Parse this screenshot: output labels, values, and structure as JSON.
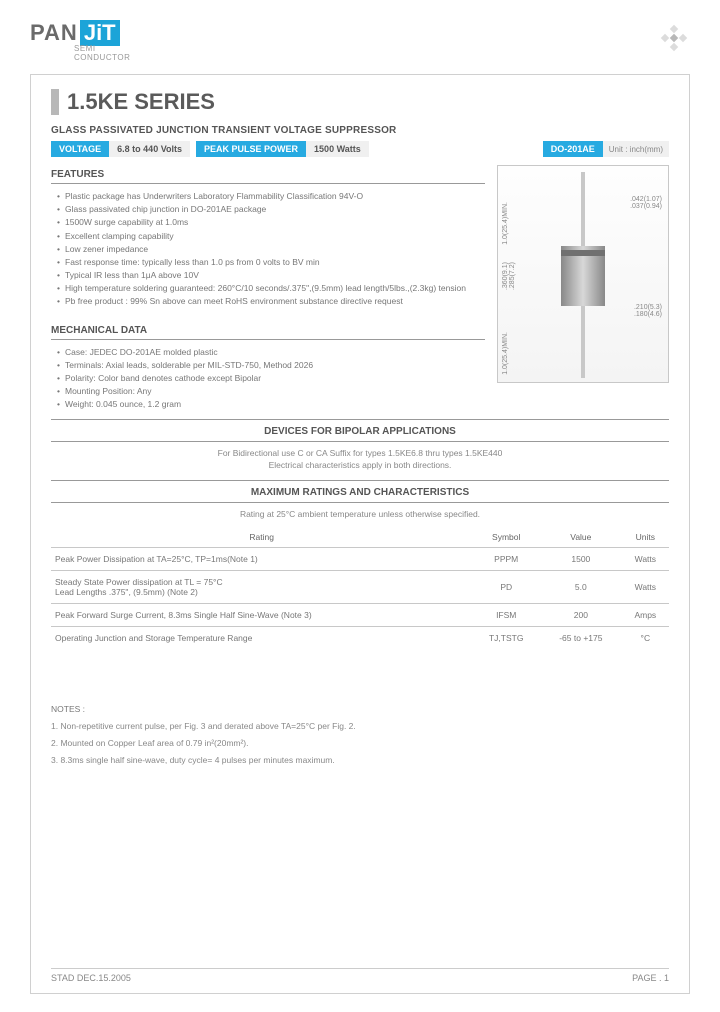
{
  "logo": {
    "brand": "PAN",
    "brand2": "JiT",
    "sub": "SEMI\nCONDUCTOR"
  },
  "title": "1.5KE SERIES",
  "subtitle": "GLASS PASSIVATED JUNCTION TRANSIENT VOLTAGE SUPPRESSOR",
  "specs": {
    "voltage_label": "VOLTAGE",
    "voltage_val": "6.8 to 440 Volts",
    "power_label": "PEAK PULSE POWER",
    "power_val": "1500 Watts",
    "pkg": "DO-201AE",
    "unit_label": "Unit : inch(mm)"
  },
  "features_h": "FEATURES",
  "features": [
    "Plastic package has Underwriters Laboratory Flammability Classification 94V-O",
    "Glass passivated chip junction in DO-201AE package",
    "1500W surge capability at 1.0ms",
    "Excellent clamping capability",
    "Low zener impedance",
    "Fast response time: typically less than 1.0 ps from 0 volts to BV min",
    "Typical IR less than 1μA above 10V",
    "High temperature soldering guaranteed: 260°C/10 seconds/.375\",(9.5mm) lead length/5lbs.,(2.3kg) tension",
    "Pb free product : 99% Sn above can meet RoHS environment substance directive request"
  ],
  "mech_h": "MECHANICAL DATA",
  "mech": [
    "Case: JEDEC DO-201AE molded plastic",
    "Terminals: Axial leads, solderable per MIL-STD-750, Method 2026",
    "Polarity: Color band denotes cathode except Bipolar",
    "Mounting Position: Any",
    "Weight: 0.045 ounce, 1.2 gram"
  ],
  "diagram": {
    "dim1": ".042(1.07)\n.037(0.94)",
    "dim2": "1.0(25.4)MIN.",
    "dim3": ".360(9.1)\n.285(7.2)",
    "dim4": ".210(5.3)\n.180(4.6)",
    "dim5": "1.0(25.4)MIN."
  },
  "bipolar_h": "DEVICES FOR BIPOLAR APPLICATIONS",
  "bipolar_t": "For Bidirectional use C or CA Suffix for types 1.5KE6.8 thru types 1.5KE440\nElectrical characteristics apply in both directions.",
  "ratings_h": "MAXIMUM RATINGS AND CHARACTERISTICS",
  "ratings_sub": "Rating at 25°C ambient temperature unless otherwise specified.",
  "table": {
    "headers": [
      "Rating",
      "Symbol",
      "Value",
      "Units"
    ],
    "rows": [
      [
        "Peak Power Dissipation at TA=25°C, TP=1ms(Note 1)",
        "PPPM",
        "1500",
        "Watts"
      ],
      [
        "Steady State Power dissipation at TL = 75°C\nLead Lengths .375\", (9.5mm) (Note 2)",
        "PD",
        "5.0",
        "Watts"
      ],
      [
        "Peak Forward Surge Current, 8.3ms Single Half Sine-Wave (Note 3)",
        "IFSM",
        "200",
        "Amps"
      ],
      [
        "Operating Junction and Storage Temperature Range",
        "TJ,TSTG",
        "-65 to +175",
        "°C"
      ]
    ]
  },
  "notes_h": "NOTES :",
  "notes": [
    "1. Non-repetitive current pulse, per Fig. 3 and derated above TA=25°C per Fig. 2.",
    "2. Mounted on Copper Leaf area of 0.79 in²(20mm²).",
    "3. 8.3ms single half sine-wave, duty cycle= 4 pulses per minutes maximum."
  ],
  "footer": {
    "left": "STAD DEC.15.2005",
    "right": "PAGE .  1"
  }
}
